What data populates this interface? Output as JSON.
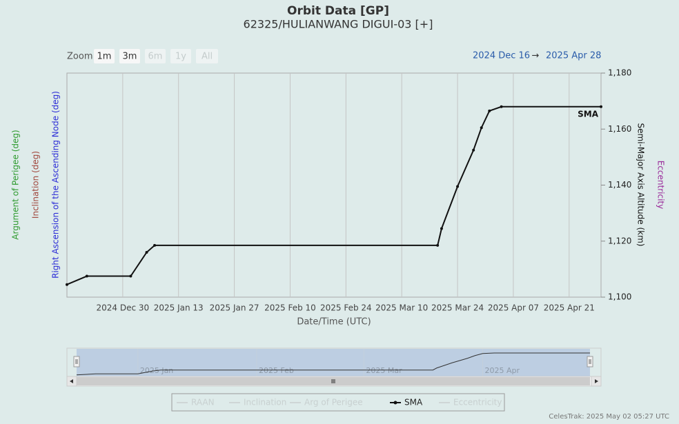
{
  "chart_data": {
    "type": "line",
    "title": "Orbit Data [GP]",
    "subtitle": "62325/HULIANWANG DIGUI-03 [+]",
    "zoom_label": "Zoom",
    "zoom_buttons": [
      {
        "label": "1m",
        "enabled": true
      },
      {
        "label": "3m",
        "enabled": true
      },
      {
        "label": "6m",
        "enabled": false
      },
      {
        "label": "1y",
        "enabled": false
      },
      {
        "label": "All",
        "enabled": false
      }
    ],
    "range_from": "2024 Dec 16",
    "range_arrow": "→",
    "range_to": "2025 Apr 28",
    "x_label": "Date/Time (UTC)",
    "left_axis_titles": [
      {
        "text": "Argument of Perigee (deg)",
        "color": "#2e9a2e"
      },
      {
        "text": "Inclination (deg)",
        "color": "#a0463c"
      },
      {
        "text": "Right Ascension of the Ascending Node (deg)",
        "color": "#2b2bd6"
      }
    ],
    "right_axis_titles": [
      {
        "text": "Semi-Major Axis Altitude (km)",
        "color": "#111111"
      },
      {
        "text": "Eccentricity",
        "color": "#9a2a9a"
      }
    ],
    "x": [
      "2024-12-16",
      "2024-12-21",
      "2025-01-01",
      "2025-01-05",
      "2025-01-07",
      "2025-03-19",
      "2025-03-20",
      "2025-03-24",
      "2025-03-28",
      "2025-03-30",
      "2025-04-01",
      "2025-04-04",
      "2025-04-29"
    ],
    "series": [
      {
        "name": "SMA",
        "color": "#111111",
        "values": [
          1104.5,
          1107.5,
          1107.5,
          1116,
          1118.5,
          1118.5,
          1124.5,
          1139.5,
          1152.5,
          1160.5,
          1166.5,
          1168,
          1168
        ]
      }
    ],
    "xlim": [
      "2024-12-16",
      "2025-04-29"
    ],
    "xticks": [
      {
        "value": "2024-12-30",
        "label": "2024 Dec 30"
      },
      {
        "value": "2025-01-13",
        "label": "2025 Jan 13"
      },
      {
        "value": "2025-01-27",
        "label": "2025 Jan 27"
      },
      {
        "value": "2025-02-10",
        "label": "2025 Feb 10"
      },
      {
        "value": "2025-02-24",
        "label": "2025 Feb 24"
      },
      {
        "value": "2025-03-10",
        "label": "2025 Mar 10"
      },
      {
        "value": "2025-03-24",
        "label": "2025 Mar 24"
      },
      {
        "value": "2025-04-07",
        "label": "2025 Apr 07"
      },
      {
        "value": "2025-04-21",
        "label": "2025 Apr 21"
      }
    ],
    "ylim": [
      1100,
      1180
    ],
    "yticks": [
      {
        "value": 1100,
        "label": "1,100"
      },
      {
        "value": 1120,
        "label": "1,120"
      },
      {
        "value": 1140,
        "label": "1,140"
      },
      {
        "value": 1160,
        "label": "1,160"
      },
      {
        "value": 1180,
        "label": "1,180"
      }
    ],
    "grid": true,
    "navigator_ticks": [
      {
        "value": "2025-01-01",
        "label": "2025 Jan"
      },
      {
        "value": "2025-02-01",
        "label": "2025 Feb"
      },
      {
        "value": "2025-03-01",
        "label": "2025 Mar"
      },
      {
        "value": "2025-04-01",
        "label": "2025 Apr"
      }
    ],
    "legend": [
      "RAAN",
      "Inclination",
      "Arg of Perigee",
      "SMA",
      "Eccentricity"
    ],
    "credit": "CelesTrak: 2025 May 02 05:27 UTC"
  }
}
